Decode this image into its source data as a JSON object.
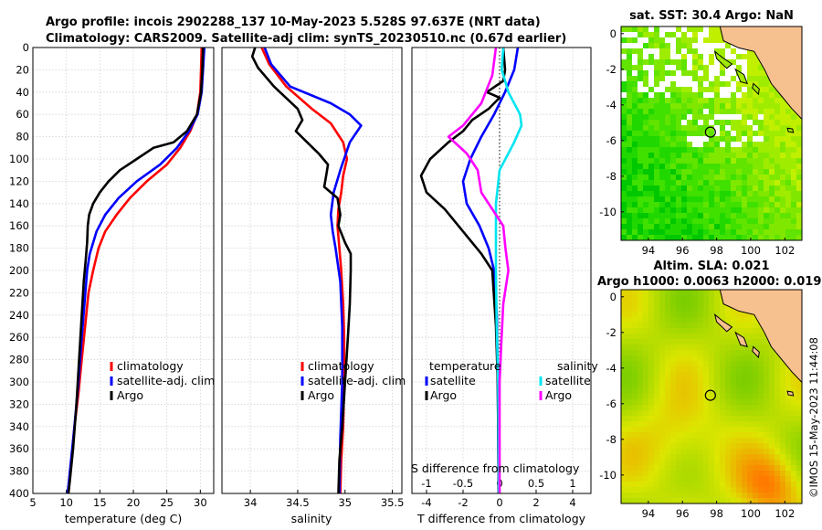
{
  "figure_title": {
    "line1": "Argo profile: incois 2902288_137 10-May-2023 5.528S 97.637E (NRT data)",
    "line2": "Climatology: CARS2009. Satellite-adj clim: synTS_20230510.nc (0.67d earlier)"
  },
  "copyright": "©IMOS 15-May-2023 11:44:08",
  "colors": {
    "climatology": "#ff0000",
    "satellite": "#0000ff",
    "argo": "#000000",
    "s_satellite": "#00e5f0",
    "s_argo": "#ff00ff"
  },
  "chart_data": [
    {
      "type": "line",
      "name": "temperature-profile",
      "xlabel": "temperature (deg C)",
      "ylabel": "",
      "xlim": [
        5,
        32
      ],
      "ylim": [
        400,
        0
      ],
      "xticks": [
        5,
        10,
        15,
        20,
        25,
        30
      ],
      "yticks": [
        0,
        20,
        40,
        60,
        80,
        100,
        120,
        140,
        160,
        180,
        200,
        220,
        240,
        260,
        280,
        300,
        320,
        340,
        360,
        380,
        400
      ],
      "grid": true,
      "legend": [
        "climatology",
        "satellite-adj. clim",
        "Argo"
      ],
      "series": [
        {
          "name": "climatology",
          "color": "#ff0000",
          "points": [
            [
              30.2,
              0
            ],
            [
              30.1,
              20
            ],
            [
              30.0,
              40
            ],
            [
              29.5,
              60
            ],
            [
              28.5,
              75
            ],
            [
              27.0,
              90
            ],
            [
              25.0,
              105
            ],
            [
              22.0,
              120
            ],
            [
              19.5,
              135
            ],
            [
              17.5,
              150
            ],
            [
              15.8,
              165
            ],
            [
              14.8,
              180
            ],
            [
              14.0,
              200
            ],
            [
              13.3,
              220
            ],
            [
              12.8,
              250
            ],
            [
              12.3,
              280
            ],
            [
              11.8,
              310
            ],
            [
              11.2,
              340
            ],
            [
              10.8,
              370
            ],
            [
              10.3,
              400
            ]
          ]
        },
        {
          "name": "satellite-adj. clim",
          "color": "#0000ff",
          "points": [
            [
              30.6,
              0
            ],
            [
              30.4,
              20
            ],
            [
              30.2,
              40
            ],
            [
              29.6,
              60
            ],
            [
              28.3,
              75
            ],
            [
              26.5,
              90
            ],
            [
              24.0,
              105
            ],
            [
              20.5,
              120
            ],
            [
              17.8,
              135
            ],
            [
              15.8,
              150
            ],
            [
              14.5,
              165
            ],
            [
              13.5,
              185
            ],
            [
              13.1,
              200
            ],
            [
              12.7,
              230
            ],
            [
              12.3,
              260
            ],
            [
              11.8,
              300
            ],
            [
              11.2,
              340
            ],
            [
              10.7,
              370
            ],
            [
              10.2,
              400
            ]
          ]
        },
        {
          "name": "Argo",
          "color": "#000000",
          "points": [
            [
              30.4,
              0
            ],
            [
              30.3,
              20
            ],
            [
              30.1,
              40
            ],
            [
              29.5,
              60
            ],
            [
              28.0,
              75
            ],
            [
              26.0,
              85
            ],
            [
              23.0,
              90
            ],
            [
              20.5,
              100
            ],
            [
              18.0,
              110
            ],
            [
              16.3,
              120
            ],
            [
              15.0,
              130
            ],
            [
              14.0,
              140
            ],
            [
              13.4,
              150
            ],
            [
              13.2,
              160
            ],
            [
              13.1,
              175
            ],
            [
              12.9,
              190
            ],
            [
              12.6,
              210
            ],
            [
              12.3,
              240
            ],
            [
              11.9,
              280
            ],
            [
              11.5,
              320
            ],
            [
              11.0,
              360
            ],
            [
              10.5,
              390
            ],
            [
              10.3,
              400
            ]
          ]
        }
      ]
    },
    {
      "type": "line",
      "name": "salinity-profile",
      "xlabel": "salinity",
      "xlim": [
        33.7,
        35.6
      ],
      "ylim": [
        400,
        0
      ],
      "xticks": [
        34,
        34.5,
        35,
        35.5
      ],
      "yticks": [
        0,
        20,
        40,
        60,
        80,
        100,
        120,
        140,
        160,
        180,
        200,
        220,
        240,
        260,
        280,
        300,
        320,
        340,
        360,
        380,
        400
      ],
      "grid": true,
      "legend": [
        "climatology",
        "satellite-adj. clim",
        "Argo"
      ],
      "series": [
        {
          "name": "climatology",
          "color": "#ff0000",
          "points": [
            [
              34.12,
              0
            ],
            [
              34.2,
              15
            ],
            [
              34.38,
              35
            ],
            [
              34.65,
              55
            ],
            [
              34.85,
              68
            ],
            [
              34.98,
              85
            ],
            [
              35.02,
              100
            ],
            [
              34.98,
              115
            ],
            [
              34.96,
              130
            ],
            [
              34.93,
              145
            ],
            [
              34.92,
              160
            ],
            [
              34.94,
              180
            ],
            [
              34.96,
              200
            ],
            [
              34.98,
              230
            ],
            [
              34.99,
              260
            ],
            [
              34.99,
              300
            ],
            [
              34.98,
              340
            ],
            [
              34.96,
              370
            ],
            [
              34.95,
              400
            ]
          ]
        },
        {
          "name": "satellite-adj. clim",
          "color": "#0000ff",
          "points": [
            [
              34.15,
              0
            ],
            [
              34.22,
              15
            ],
            [
              34.42,
              35
            ],
            [
              34.85,
              50
            ],
            [
              35.05,
              60
            ],
            [
              35.17,
              70
            ],
            [
              35.05,
              85
            ],
            [
              34.95,
              110
            ],
            [
              34.88,
              130
            ],
            [
              34.85,
              150
            ],
            [
              34.87,
              165
            ],
            [
              34.9,
              180
            ],
            [
              34.95,
              210
            ],
            [
              34.97,
              250
            ],
            [
              34.97,
              300
            ],
            [
              34.95,
              350
            ],
            [
              34.94,
              400
            ]
          ]
        },
        {
          "name": "Argo",
          "color": "#000000",
          "points": [
            [
              34.05,
              0
            ],
            [
              34.02,
              8
            ],
            [
              34.08,
              18
            ],
            [
              34.25,
              35
            ],
            [
              34.5,
              55
            ],
            [
              34.55,
              65
            ],
            [
              34.48,
              75
            ],
            [
              34.6,
              85
            ],
            [
              34.72,
              95
            ],
            [
              34.82,
              105
            ],
            [
              34.8,
              115
            ],
            [
              34.78,
              125
            ],
            [
              34.92,
              135
            ],
            [
              34.95,
              150
            ],
            [
              34.93,
              160
            ],
            [
              35.0,
              175
            ],
            [
              35.06,
              185
            ],
            [
              35.06,
              200
            ],
            [
              35.05,
              230
            ],
            [
              35.03,
              260
            ],
            [
              35.0,
              300
            ],
            [
              34.97,
              340
            ],
            [
              34.94,
              370
            ],
            [
              34.93,
              400
            ]
          ]
        }
      ]
    },
    {
      "type": "line",
      "name": "difference-profile",
      "xlabel": "T difference from climatology",
      "xlabel_top": "S difference from climatology",
      "xlim": [
        -4.8,
        5.0
      ],
      "xticks": [
        -4,
        -2,
        0,
        2,
        4
      ],
      "top_xlim": [
        -1.2,
        1.25
      ],
      "top_xticks": [
        -1,
        -0.5,
        0,
        0.5,
        1
      ],
      "top_xtick_labels": [
        "-1",
        "-0.5",
        "0",
        "0.5",
        "1"
      ],
      "ylim": [
        400,
        0
      ],
      "grid": true,
      "legend_groups": {
        "temperature": [
          "satellite",
          "Argo"
        ],
        "salinity": [
          "satellite",
          "Argo"
        ]
      },
      "series": [
        {
          "name": "T satellite",
          "group": "temperature",
          "axis": "T",
          "color": "#0000ff",
          "points": [
            [
              1.0,
              0
            ],
            [
              0.8,
              20
            ],
            [
              0.3,
              40
            ],
            [
              -0.3,
              60
            ],
            [
              -1.0,
              80
            ],
            [
              -1.6,
              100
            ],
            [
              -2.0,
              120
            ],
            [
              -1.8,
              140
            ],
            [
              -1.1,
              160
            ],
            [
              -0.6,
              180
            ],
            [
              -0.3,
              200
            ],
            [
              -0.15,
              240
            ],
            [
              -0.1,
              300
            ],
            [
              -0.05,
              400
            ]
          ]
        },
        {
          "name": "T Argo",
          "group": "temperature",
          "axis": "T",
          "color": "#000000",
          "points": [
            [
              0.2,
              0
            ],
            [
              0.3,
              20
            ],
            [
              0.2,
              30
            ],
            [
              -0.7,
              40
            ],
            [
              0.0,
              45
            ],
            [
              -0.6,
              55
            ],
            [
              -1.5,
              65
            ],
            [
              -2.0,
              75
            ],
            [
              -2.8,
              85
            ],
            [
              -3.8,
              100
            ],
            [
              -4.3,
              115
            ],
            [
              -4.0,
              130
            ],
            [
              -3.0,
              145
            ],
            [
              -2.0,
              165
            ],
            [
              -1.0,
              185
            ],
            [
              -0.4,
              200
            ],
            [
              -0.2,
              250
            ],
            [
              -0.1,
              300
            ],
            [
              -0.05,
              400
            ]
          ]
        },
        {
          "name": "S satellite",
          "group": "salinity",
          "axis": "S",
          "color": "#00e5f0",
          "points": [
            [
              0.05,
              0
            ],
            [
              0.03,
              20
            ],
            [
              0.12,
              40
            ],
            [
              0.28,
              60
            ],
            [
              0.3,
              70
            ],
            [
              0.2,
              85
            ],
            [
              0.0,
              110
            ],
            [
              -0.05,
              140
            ],
            [
              -0.05,
              200
            ],
            [
              -0.04,
              250
            ],
            [
              -0.02,
              300
            ],
            [
              -0.01,
              400
            ]
          ]
        },
        {
          "name": "S Argo",
          "group": "salinity",
          "axis": "S",
          "color": "#ff00ff",
          "points": [
            [
              -0.05,
              0
            ],
            [
              -0.1,
              25
            ],
            [
              -0.25,
              50
            ],
            [
              -0.5,
              70
            ],
            [
              -0.7,
              80
            ],
            [
              -0.45,
              95
            ],
            [
              -0.3,
              110
            ],
            [
              -0.25,
              130
            ],
            [
              -0.05,
              150
            ],
            [
              0.05,
              160
            ],
            [
              0.08,
              180
            ],
            [
              0.12,
              200
            ],
            [
              0.05,
              230
            ],
            [
              0.02,
              270
            ],
            [
              0.0,
              300
            ],
            [
              0.0,
              400
            ]
          ]
        }
      ]
    },
    {
      "type": "heatmap",
      "name": "sst-map",
      "title": "sat. SST: 30.4 Argo: NaN",
      "xlim": [
        92.4,
        103.0
      ],
      "ylim": [
        -11.6,
        0.4
      ],
      "xticks": [
        94,
        96,
        98,
        100,
        102
      ],
      "yticks": [
        0,
        -2,
        -4,
        -6,
        -8,
        -10
      ],
      "argo_position": [
        97.637,
        -5.528
      ]
    },
    {
      "type": "heatmap",
      "name": "sla-map",
      "title_line1": "Altim. SLA: 0.021",
      "title_line2": "Argo h1000: 0.0063 h2000: 0.019",
      "xlim": [
        92.4,
        103.0
      ],
      "ylim": [
        -11.6,
        0.4
      ],
      "xticks": [
        94,
        96,
        98,
        100,
        102
      ],
      "yticks": [
        0,
        -2,
        -4,
        -6,
        -8,
        -10
      ],
      "argo_position": [
        97.637,
        -5.528
      ]
    }
  ]
}
